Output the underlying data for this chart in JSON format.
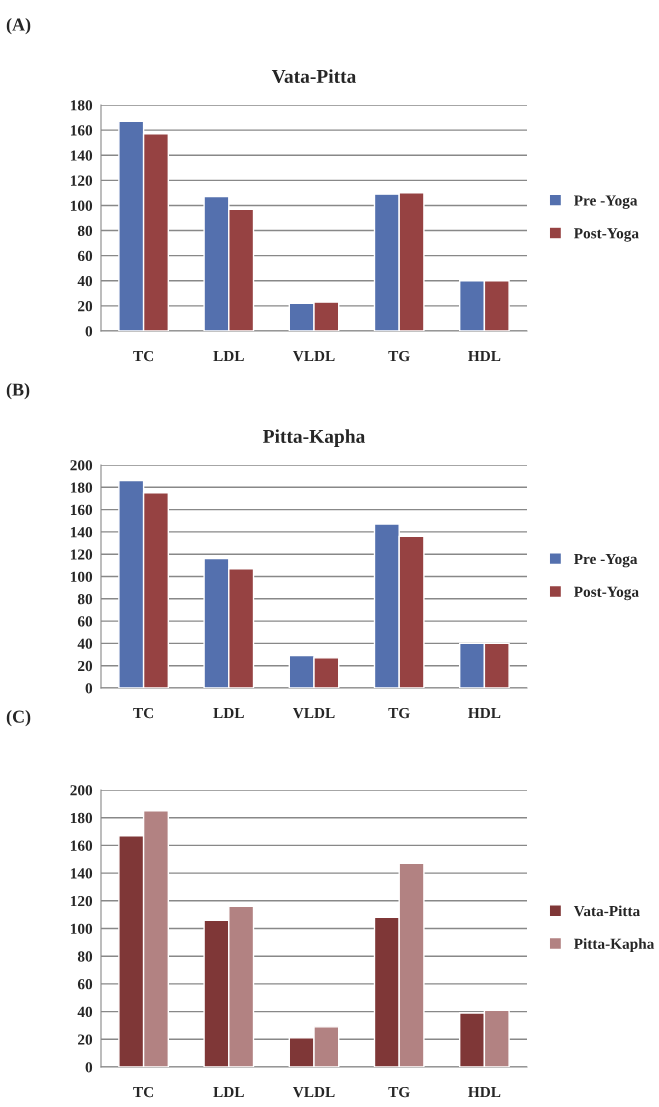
{
  "chart_data": [
    {
      "type": "bar",
      "title": "Vata-Pitta",
      "annotations": [
        "(A)"
      ],
      "categories": [
        "TC",
        "LDL",
        "VLDL",
        "TG",
        "HDL"
      ],
      "series": [
        {
          "name": "Pre -Yoga",
          "color": "#5470ae",
          "values": [
            167,
            107,
            22,
            109,
            40
          ]
        },
        {
          "name": "Post-Yoga",
          "color": "#964242",
          "values": [
            157,
            97,
            23,
            110,
            40
          ]
        }
      ],
      "ylim": [
        0,
        180
      ],
      "yticks": [
        0,
        20,
        40,
        60,
        80,
        100,
        120,
        140,
        160,
        180
      ],
      "grid": "y",
      "legend": "right"
    },
    {
      "type": "bar",
      "title": "Pitta-Kapha",
      "annotations": [
        "(B)"
      ],
      "categories": [
        "TC",
        "LDL",
        "VLDL",
        "TG",
        "HDL"
      ],
      "series": [
        {
          "name": "Pre -Yoga",
          "color": "#5470ae",
          "values": [
            186,
            116,
            29,
            147,
            40
          ]
        },
        {
          "name": "Post-Yoga",
          "color": "#964242",
          "values": [
            175,
            107,
            27,
            136,
            40
          ]
        }
      ],
      "ylim": [
        0,
        200
      ],
      "yticks": [
        0,
        20,
        40,
        60,
        80,
        100,
        120,
        140,
        160,
        180,
        200
      ],
      "grid": "y",
      "legend": "right"
    },
    {
      "type": "bar",
      "annotations": [
        "(C)"
      ],
      "categories": [
        "TC",
        "LDL",
        "VLDL",
        "TG",
        "HDL"
      ],
      "series": [
        {
          "name": "Vata-Pitta",
          "color": "#7f3737",
          "values": [
            167,
            106,
            21,
            108,
            39
          ]
        },
        {
          "name": "Pitta-Kapha",
          "color": "#b28282",
          "values": [
            185,
            116,
            29,
            147,
            41
          ]
        }
      ],
      "ylim": [
        0,
        200
      ],
      "yticks": [
        0,
        20,
        40,
        60,
        80,
        100,
        120,
        140,
        160,
        180,
        200
      ],
      "grid": "y",
      "legend": "right"
    }
  ]
}
